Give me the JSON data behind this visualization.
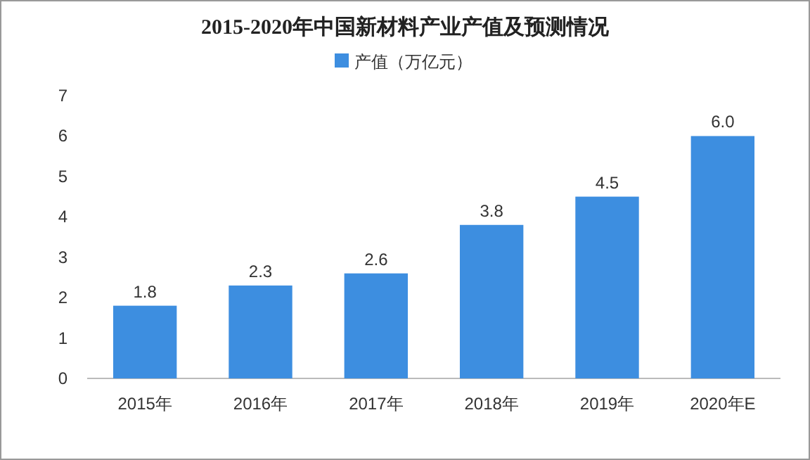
{
  "chart_data": {
    "type": "bar",
    "title": "2015-2020年中国新材料产业产值及预测情况",
    "categories": [
      "2015年",
      "2016年",
      "2017年",
      "2018年",
      "2019年",
      "2020年E"
    ],
    "series": [
      {
        "name": "产值（万亿元）",
        "color": "#3d8ee0",
        "values": [
          1.8,
          2.3,
          2.6,
          3.8,
          4.5,
          6.0
        ]
      }
    ],
    "value_labels": [
      "1.8",
      "2.3",
      "2.6",
      "3.8",
      "4.5",
      "6.0"
    ],
    "ylim": [
      0,
      7
    ],
    "yticks": [
      0,
      1,
      2,
      3,
      4,
      5,
      6,
      7
    ],
    "grid": false,
    "legend": "top"
  }
}
